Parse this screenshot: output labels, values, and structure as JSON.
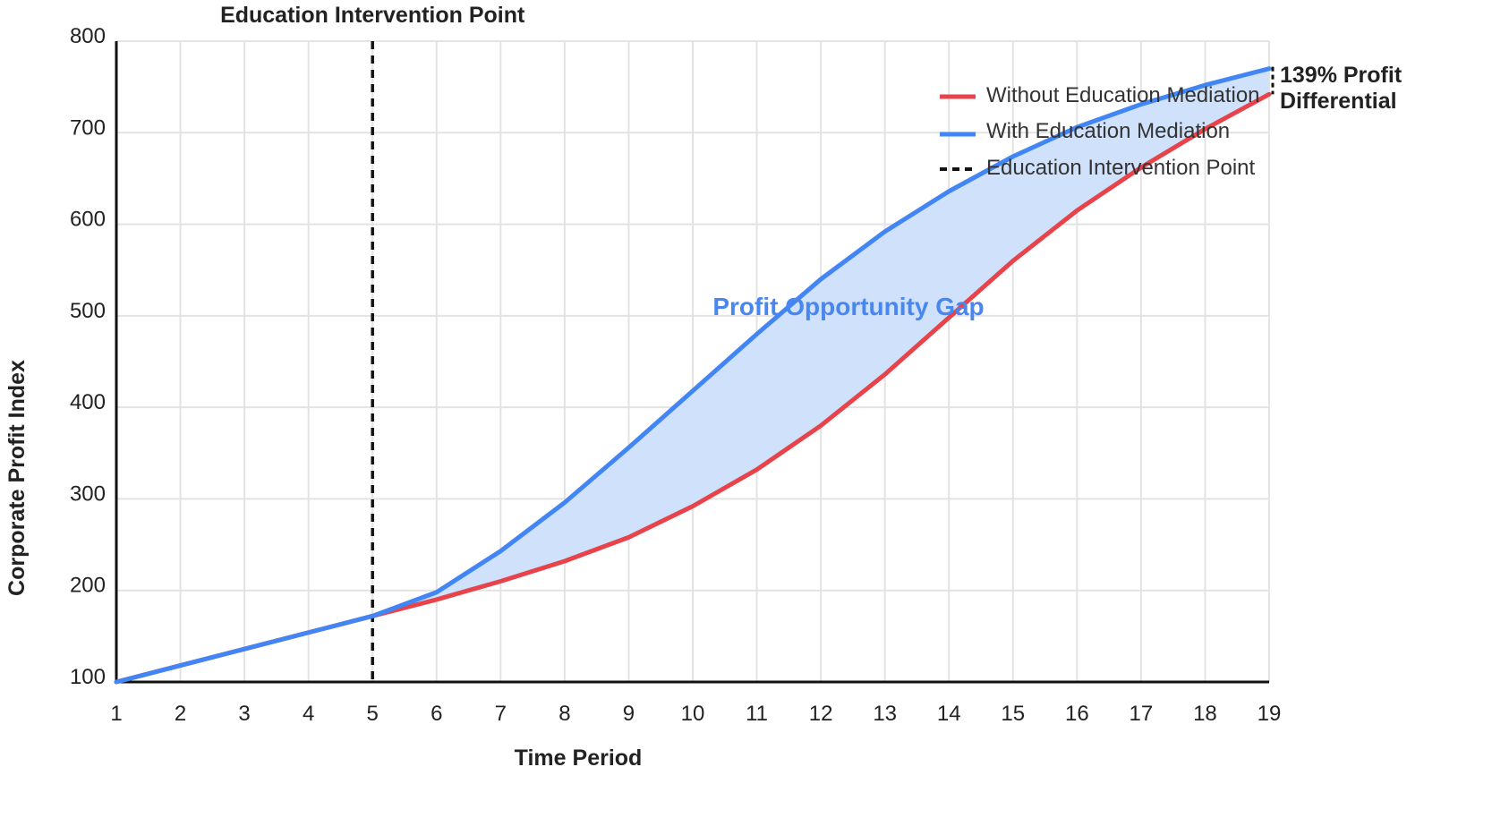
{
  "chart_data": {
    "type": "line",
    "x": [
      1,
      2,
      3,
      4,
      5,
      6,
      7,
      8,
      9,
      10,
      11,
      12,
      13,
      14,
      15,
      16,
      17,
      18,
      19
    ],
    "series": [
      {
        "name": "Without Education Mediation",
        "color": "#e8434b",
        "values": [
          100,
          118,
          136,
          154,
          172,
          190,
          210,
          232,
          258,
          292,
          332,
          380,
          436,
          498,
          560,
          615,
          662,
          704,
          742
        ]
      },
      {
        "name": "With Education Mediation",
        "color": "#4285f4",
        "values": [
          100,
          118,
          136,
          154,
          172,
          198,
          243,
          296,
          356,
          418,
          480,
          540,
          592,
          636,
          674,
          706,
          731,
          752,
          770
        ]
      }
    ],
    "xlabel": "Time Period",
    "ylabel": "Corporate Profit Index",
    "xlim": [
      1,
      19
    ],
    "ylim": [
      100,
      800
    ],
    "yticks": [
      100,
      200,
      300,
      400,
      500,
      600,
      700,
      800
    ],
    "xticks": [
      1,
      2,
      3,
      4,
      5,
      6,
      7,
      8,
      9,
      10,
      11,
      12,
      13,
      14,
      15,
      16,
      17,
      18,
      19
    ],
    "grid": true,
    "legend_position": "top-right",
    "intervention": {
      "x": 5,
      "label": "Education Intervention Point",
      "legend_label": "Education Intervention Point",
      "color": "#111111"
    },
    "gap_label": "Profit Opportunity Gap",
    "gap_label_color": "#4a86f0",
    "gap_fill_color": "#cfe1fb",
    "differential_label_line1": "139% Profit",
    "differential_label_line2": "Differential"
  }
}
